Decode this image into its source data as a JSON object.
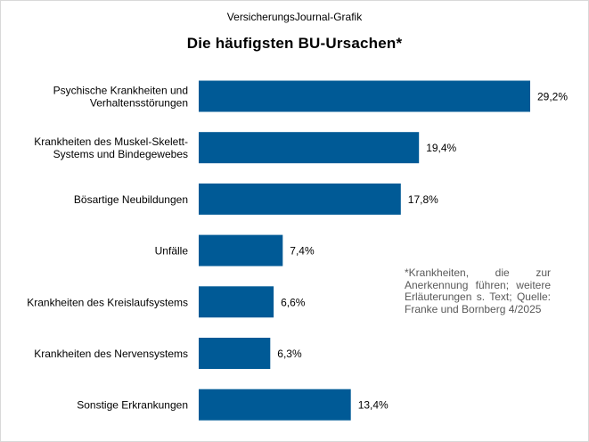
{
  "chart_data": {
    "type": "bar",
    "orientation": "horizontal",
    "source_title": "VersicherungsJournal-Grafik",
    "title": "Die häufigsten BU-Ursachen*",
    "categories": [
      [
        "Psychische Krankheiten und",
        "Verhaltensstörungen"
      ],
      [
        "Krankheiten des Muskel-Skelett-",
        "Systems und Bindegewebes"
      ],
      [
        "Bösartige Neubildungen"
      ],
      [
        "Unfälle"
      ],
      [
        "Krankheiten des Kreislaufsystems"
      ],
      [
        "Krankheiten des Nervensystems"
      ],
      [
        "Sonstige Erkrankungen"
      ]
    ],
    "values": [
      29.2,
      19.4,
      17.8,
      7.4,
      6.6,
      6.3,
      13.4
    ],
    "value_labels": [
      "29,2%",
      "19,4%",
      "17,8%",
      "7,4%",
      "6,6%",
      "6,3%",
      "13,4%"
    ],
    "unit": "%",
    "bar_color": "#005a96",
    "grid": false,
    "legend": "none",
    "footnote": "*Krankheiten, die zur Anerkennung führen; weitere Erläuterungen s. Text; Quelle: Franke und Bornberg 4/2025"
  }
}
